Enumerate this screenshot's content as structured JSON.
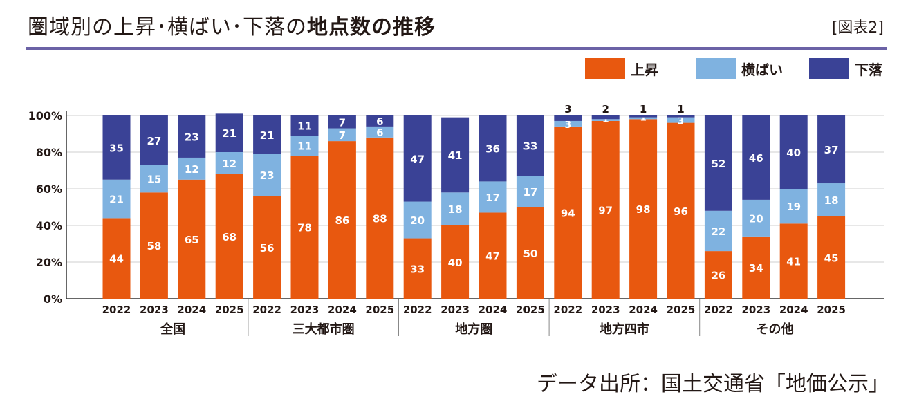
{
  "title_light": "圏域別の上昇･横ばい･下落の",
  "title_bold": "地点数の推移",
  "figure_label": "[図表2]",
  "source": "データ出所：国土交通省「地価公示」",
  "colors": {
    "up": "#e8580f",
    "flat": "#7fb2e0",
    "down": "#3a4296",
    "rule": "#6b62a6"
  },
  "chart_data": {
    "type": "bar",
    "stacked": true,
    "title": "圏域別の上昇･横ばい･下落の地点数の推移",
    "ylim": [
      0,
      100
    ],
    "y_ticks": [
      "0%",
      "20%",
      "40%",
      "60%",
      "80%",
      "100%"
    ],
    "grid": true,
    "legend_position": "top-right",
    "groups": [
      "全国",
      "三大都市圏",
      "地方圏",
      "地方四市",
      "その他"
    ],
    "years": [
      "2022",
      "2023",
      "2024",
      "2025"
    ],
    "series": [
      {
        "name": "上昇",
        "key": "up",
        "values": [
          [
            44,
            58,
            65,
            68
          ],
          [
            56,
            78,
            86,
            88
          ],
          [
            33,
            40,
            47,
            50
          ],
          [
            94,
            97,
            98,
            96
          ],
          [
            26,
            34,
            41,
            45
          ]
        ]
      },
      {
        "name": "横ばい",
        "key": "flat",
        "values": [
          [
            21,
            15,
            12,
            12
          ],
          [
            23,
            11,
            7,
            6
          ],
          [
            20,
            18,
            17,
            17
          ],
          [
            3,
            1,
            1,
            3
          ],
          [
            22,
            20,
            19,
            18
          ]
        ]
      },
      {
        "name": "下落",
        "key": "down",
        "values": [
          [
            35,
            27,
            23,
            21
          ],
          [
            21,
            11,
            7,
            6
          ],
          [
            47,
            41,
            36,
            33
          ],
          [
            3,
            2,
            1,
            1
          ],
          [
            52,
            46,
            40,
            37
          ]
        ]
      }
    ]
  }
}
